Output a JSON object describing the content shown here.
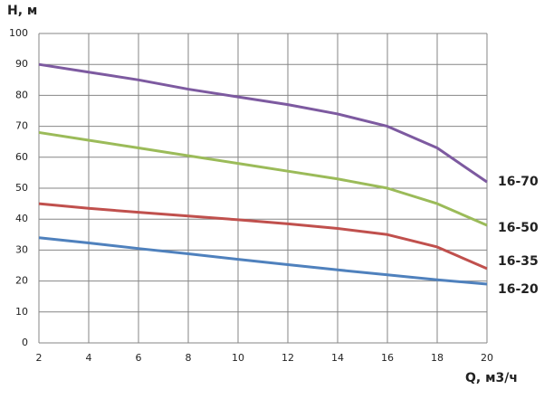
{
  "chart_data": {
    "type": "line",
    "y_label": "H, м",
    "x_label": "Q, м3/ч",
    "x": [
      2,
      4,
      6,
      8,
      10,
      12,
      14,
      16,
      18,
      20
    ],
    "series": [
      {
        "name": "16-70",
        "color": "#7d5aa0",
        "values": [
          90,
          87.5,
          85,
          82,
          79.5,
          77,
          74,
          70,
          63,
          52
        ]
      },
      {
        "name": "16-50",
        "color": "#9bbb59",
        "values": [
          68,
          65.5,
          63,
          60.5,
          58,
          55.5,
          53,
          50,
          45,
          38
        ]
      },
      {
        "name": "16-35",
        "color": "#c0504d",
        "values": [
          45,
          43.5,
          42.2,
          41,
          39.8,
          38.5,
          37,
          35,
          31,
          24
        ]
      },
      {
        "name": "16-20",
        "color": "#4f81bd",
        "values": [
          34,
          32.3,
          30.5,
          28.8,
          27,
          25.3,
          23.6,
          22,
          20.4,
          19
        ]
      }
    ],
    "xlim": [
      2,
      20
    ],
    "xticks": [
      2,
      4,
      6,
      8,
      10,
      12,
      14,
      16,
      18,
      20
    ],
    "ylim": [
      0,
      100
    ],
    "yticks": [
      0,
      10,
      20,
      30,
      40,
      50,
      60,
      70,
      80,
      90,
      100
    ],
    "grid": true
  }
}
